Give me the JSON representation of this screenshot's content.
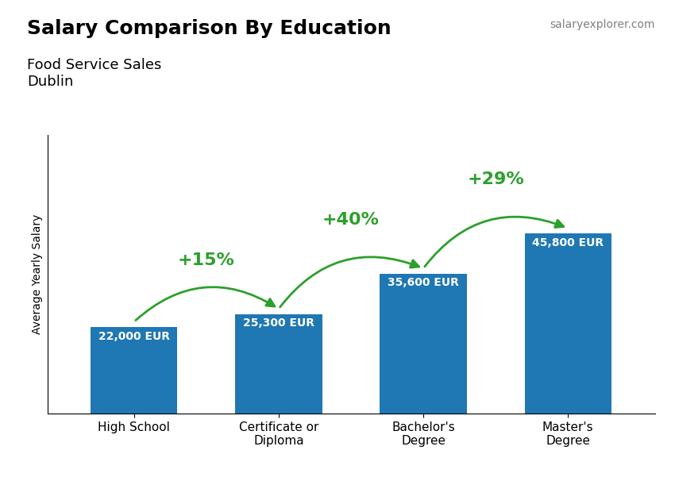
{
  "chart_data": {
    "type": "bar",
    "title": "Salary Comparison By Education",
    "subtitle": "Food Service Sales\nDublin",
    "ylabel": "Average Yearly Salary",
    "categories": [
      "High School",
      "Certificate or\nDiploma",
      "Bachelor's\nDegree",
      "Master's\nDegree"
    ],
    "values": [
      22000,
      25300,
      35600,
      45800
    ],
    "value_labels": [
      "22,000 EUR",
      "25,300 EUR",
      "35,600 EUR",
      "45,800 EUR"
    ],
    "data_labels": true,
    "ylim": [
      0,
      70990
    ],
    "tick_labels": "x",
    "grid": false,
    "annotations": [
      {
        "text": "+15%",
        "from": "High School",
        "to": "Certificate or\nDiploma"
      },
      {
        "text": "+40%",
        "from": "Certificate or\nDiploma",
        "to": "Bachelor's\nDegree"
      },
      {
        "text": "+29%",
        "from": "Bachelor's\nDegree",
        "to": "Master's\nDegree"
      },
      {
        "text": "salaryexplorer.com"
      }
    ]
  }
}
